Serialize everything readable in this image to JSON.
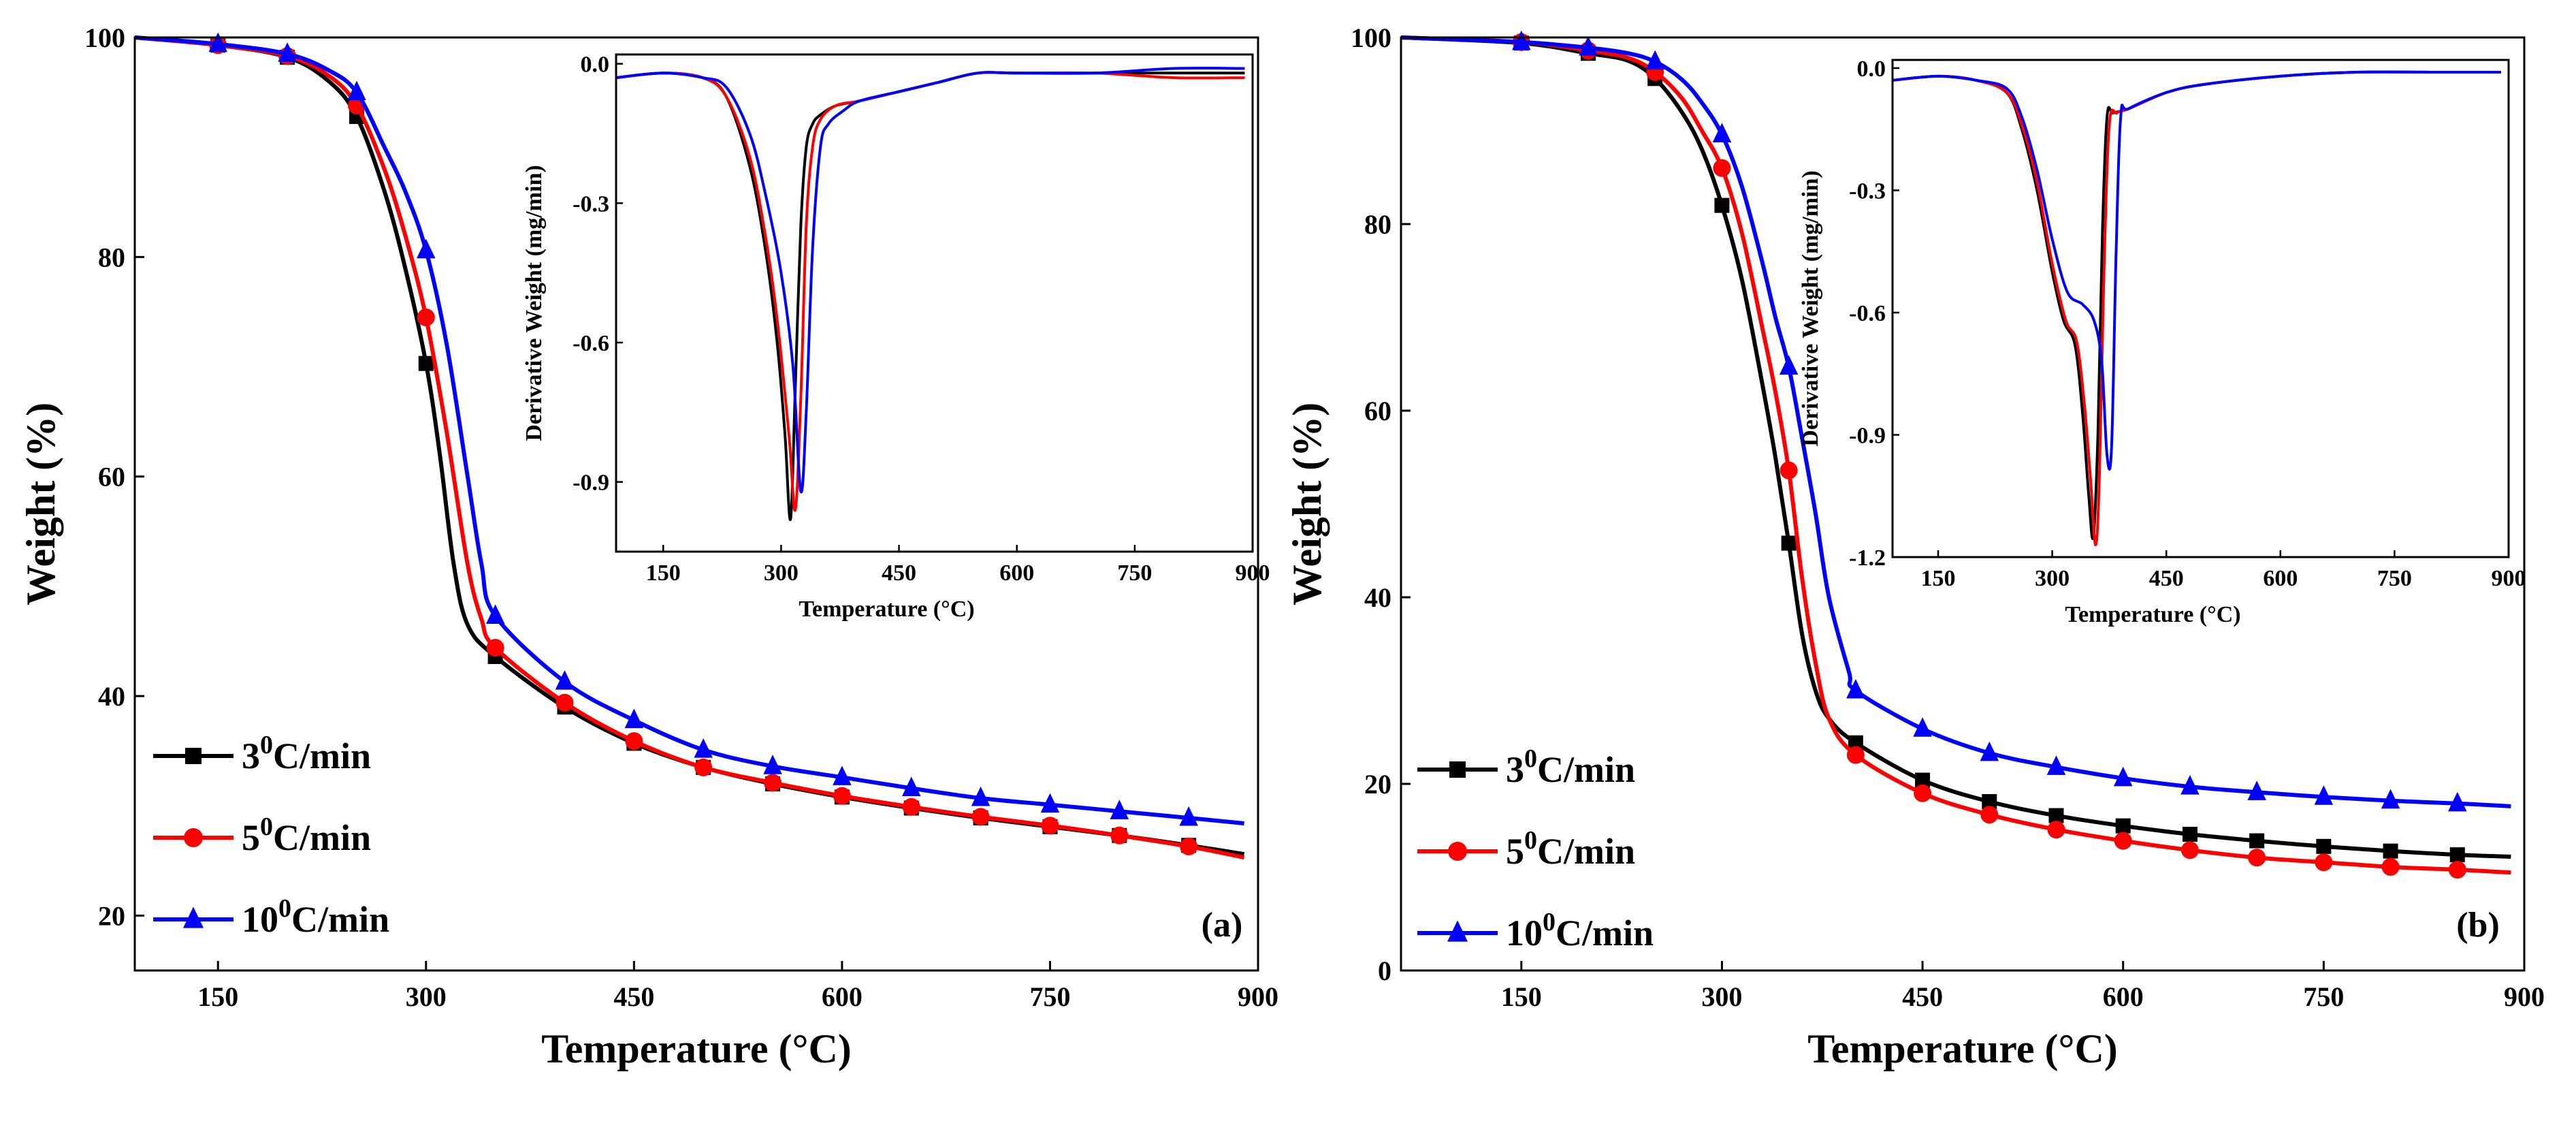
{
  "chart_data": [
    {
      "panel": "(a)",
      "type": "line",
      "xlabel": "Temperature (°C)",
      "ylabel": "Weight (%)",
      "xlim": [
        90,
        900
      ],
      "ylim": [
        15,
        100
      ],
      "xticks": [
        150,
        300,
        450,
        600,
        750,
        900
      ],
      "yticks": [
        20,
        40,
        60,
        80,
        100
      ],
      "legend_position": "bottom-left",
      "series": [
        {
          "name": "3°C/min",
          "label_num": "3",
          "label_sup": "0",
          "label_rest": "C/min",
          "color": "#000000",
          "marker": "square",
          "x": [
            90,
            150,
            200,
            230,
            250,
            270,
            285,
            300,
            310,
            320,
            330,
            350,
            400,
            450,
            500,
            550,
            600,
            650,
            700,
            750,
            800,
            850,
            890
          ],
          "y": [
            100,
            99.3,
            98.2,
            96,
            92.8,
            86,
            79,
            70.3,
            62,
            52,
            46.5,
            43.6,
            39,
            35.7,
            33.5,
            32,
            30.8,
            29.8,
            28.9,
            28.1,
            27.3,
            26.4,
            25.6
          ]
        },
        {
          "name": "5°C/min",
          "label_num": "5",
          "label_sup": "0",
          "label_rest": "C/min",
          "color": "#ff0000",
          "marker": "circle",
          "x": [
            90,
            150,
            200,
            230,
            250,
            270,
            285,
            300,
            315,
            330,
            340,
            350,
            400,
            450,
            500,
            550,
            600,
            650,
            700,
            750,
            800,
            850,
            890
          ],
          "y": [
            100,
            99.3,
            98.3,
            96.5,
            93.8,
            88,
            82,
            74.5,
            64,
            52,
            47,
            44.4,
            39.4,
            35.9,
            33.5,
            32.1,
            30.9,
            29.9,
            29,
            28.2,
            27.3,
            26.3,
            25.3
          ]
        },
        {
          "name": "10°C/min",
          "label_num": "10",
          "label_sup": "0",
          "label_rest": "C/min",
          "color": "#0000ff",
          "marker": "triangle",
          "x": [
            90,
            150,
            200,
            230,
            250,
            270,
            285,
            300,
            315,
            330,
            340,
            350,
            400,
            450,
            500,
            550,
            600,
            650,
            700,
            750,
            800,
            850,
            890
          ],
          "y": [
            100,
            99.4,
            98.5,
            97,
            95,
            90,
            86,
            80.6,
            72,
            60,
            52,
            47.3,
            41.3,
            37.8,
            35.1,
            33.6,
            32.6,
            31.6,
            30.7,
            30.1,
            29.5,
            28.9,
            28.4
          ]
        }
      ],
      "marker_x": [
        150,
        200,
        250,
        300,
        350,
        400,
        450,
        500,
        550,
        600,
        650,
        700,
        750,
        800,
        850
      ],
      "inset": {
        "type": "line",
        "xlabel": "Temperature (°C)",
        "ylabel": "Derivative Weight (mg/min)",
        "xlim": [
          90,
          900
        ],
        "ylim": [
          -1.05,
          0.02
        ],
        "xticks": [
          150,
          300,
          450,
          600,
          750,
          900
        ],
        "yticks": [
          0.0,
          -0.3,
          -0.6,
          -0.9
        ],
        "ytick_labels": [
          "0.0",
          "-0.3",
          "-0.6",
          "-0.9"
        ],
        "series": [
          {
            "name": "3°C/min",
            "color": "#000000",
            "x": [
              90,
              150,
              200,
              230,
              260,
              280,
              295,
              305,
              312,
              318,
              325,
              332,
              340,
              350,
              370,
              400,
              450,
              500,
              550,
              600,
              700,
              800,
              890
            ],
            "y": [
              -0.03,
              -0.02,
              -0.03,
              -0.07,
              -0.22,
              -0.4,
              -0.6,
              -0.8,
              -0.98,
              -0.7,
              -0.35,
              -0.18,
              -0.13,
              -0.11,
              -0.09,
              -0.08,
              -0.06,
              -0.04,
              -0.02,
              -0.02,
              -0.02,
              -0.02,
              -0.02
            ]
          },
          {
            "name": "5°C/min",
            "color": "#ff0000",
            "x": [
              90,
              150,
              200,
              230,
              260,
              280,
              295,
              310,
              318,
              325,
              332,
              340,
              350,
              370,
              400,
              450,
              500,
              550,
              600,
              700,
              800,
              890
            ],
            "y": [
              -0.03,
              -0.02,
              -0.03,
              -0.07,
              -0.2,
              -0.37,
              -0.55,
              -0.8,
              -0.96,
              -0.72,
              -0.35,
              -0.18,
              -0.12,
              -0.09,
              -0.08,
              -0.06,
              -0.04,
              -0.02,
              -0.02,
              -0.02,
              -0.03,
              -0.03
            ]
          },
          {
            "name": "10°C/min",
            "color": "#0000ff",
            "x": [
              90,
              150,
              200,
              230,
              260,
              280,
              300,
              315,
              325,
              332,
              340,
              350,
              360,
              380,
              400,
              450,
              500,
              550,
              600,
              700,
              800,
              890
            ],
            "y": [
              -0.03,
              -0.02,
              -0.03,
              -0.05,
              -0.15,
              -0.28,
              -0.45,
              -0.65,
              -0.92,
              -0.75,
              -0.4,
              -0.18,
              -0.13,
              -0.1,
              -0.08,
              -0.06,
              -0.04,
              -0.02,
              -0.02,
              -0.02,
              -0.01,
              -0.01
            ]
          }
        ]
      }
    },
    {
      "panel": "(b)",
      "type": "line",
      "xlabel": "Temperature (°C)",
      "ylabel": "Weight (%)",
      "xlim": [
        60,
        900
      ],
      "ylim": [
        0,
        100
      ],
      "xticks": [
        150,
        300,
        450,
        600,
        750,
        900
      ],
      "yticks": [
        0,
        20,
        40,
        60,
        80,
        100
      ],
      "legend_position": "bottom-left",
      "series": [
        {
          "name": "3°C/min",
          "label_num": "3",
          "label_sup": "0",
          "label_rest": "C/min",
          "color": "#000000",
          "marker": "square",
          "x": [
            60,
            150,
            200,
            230,
            250,
            270,
            285,
            300,
            315,
            330,
            340,
            350,
            360,
            370,
            380,
            400,
            450,
            500,
            550,
            600,
            650,
            700,
            750,
            800,
            850,
            890
          ],
          "y": [
            100,
            99.4,
            98.3,
            97.5,
            95.6,
            92,
            88,
            82,
            74,
            63,
            55,
            45.8,
            36,
            30,
            27,
            24.4,
            20.4,
            18.1,
            16.6,
            15.5,
            14.6,
            13.9,
            13.3,
            12.8,
            12.4,
            12.2
          ]
        },
        {
          "name": "5°C/min",
          "label_num": "5",
          "label_sup": "0",
          "label_rest": "C/min",
          "color": "#ff0000",
          "marker": "circle",
          "x": [
            60,
            150,
            200,
            230,
            250,
            270,
            285,
            300,
            315,
            330,
            340,
            350,
            360,
            370,
            380,
            400,
            450,
            500,
            550,
            600,
            650,
            700,
            750,
            800,
            850,
            890
          ],
          "y": [
            100,
            99.5,
            98.6,
            97.8,
            96.3,
            93.5,
            90,
            86,
            79,
            69,
            62,
            53.6,
            42,
            33,
            27,
            23.1,
            19,
            16.7,
            15.1,
            13.9,
            12.9,
            12.1,
            11.6,
            11.1,
            10.8,
            10.5
          ]
        },
        {
          "name": "10°C/min",
          "label_num": "10",
          "label_sup": "0",
          "label_rest": "C/min",
          "color": "#0000ff",
          "marker": "triangle",
          "x": [
            60,
            150,
            200,
            230,
            250,
            270,
            285,
            300,
            315,
            330,
            340,
            350,
            360,
            370,
            380,
            395,
            400,
            450,
            500,
            550,
            600,
            650,
            700,
            750,
            800,
            850,
            890
          ],
          "y": [
            100,
            99.5,
            98.9,
            98.3,
            97.4,
            95.5,
            93,
            89.6,
            84,
            76,
            70,
            64.7,
            57,
            49,
            40,
            32,
            30,
            25.9,
            23.3,
            21.8,
            20.6,
            19.7,
            19.1,
            18.6,
            18.2,
            17.9,
            17.6
          ]
        }
      ],
      "marker_x": [
        150,
        200,
        250,
        300,
        350,
        400,
        450,
        500,
        550,
        600,
        650,
        700,
        750,
        800,
        850
      ],
      "inset": {
        "type": "line",
        "xlabel": "Temperature (°C)",
        "ylabel": "Derivative Weight (mg/min)",
        "xlim": [
          90,
          900
        ],
        "ylim": [
          -1.2,
          0.02
        ],
        "xticks": [
          150,
          300,
          450,
          600,
          750,
          900
        ],
        "yticks": [
          0.0,
          -0.3,
          -0.6,
          -0.9,
          -1.2
        ],
        "ytick_labels": [
          "0.0",
          "-0.3",
          "-0.6",
          "-0.9",
          "-1.2"
        ],
        "series": [
          {
            "name": "3°C/min",
            "color": "#000000",
            "x": [
              90,
              150,
              200,
              240,
              260,
              280,
              300,
              315,
              330,
              340,
              348,
              354,
              360,
              366,
              372,
              380,
              400,
              450,
              500,
              600,
              700,
              800,
              890
            ],
            "y": [
              -0.03,
              -0.02,
              -0.03,
              -0.06,
              -0.15,
              -0.3,
              -0.5,
              -0.62,
              -0.68,
              -0.85,
              -1.05,
              -1.15,
              -0.9,
              -0.4,
              -0.12,
              -0.11,
              -0.1,
              -0.06,
              -0.04,
              -0.02,
              -0.01,
              -0.01,
              -0.01
            ]
          },
          {
            "name": "5°C/min",
            "color": "#ff0000",
            "x": [
              90,
              150,
              200,
              240,
              260,
              280,
              300,
              318,
              332,
              342,
              350,
              357,
              362,
              368,
              375,
              385,
              400,
              450,
              500,
              600,
              700,
              800,
              890
            ],
            "y": [
              -0.03,
              -0.02,
              -0.03,
              -0.06,
              -0.14,
              -0.28,
              -0.48,
              -0.62,
              -0.67,
              -0.82,
              -1.0,
              -1.17,
              -1.0,
              -0.5,
              -0.14,
              -0.11,
              -0.1,
              -0.06,
              -0.04,
              -0.02,
              -0.01,
              -0.01,
              -0.01
            ]
          },
          {
            "name": "10°C/min",
            "color": "#0000ff",
            "x": [
              90,
              150,
              200,
              240,
              260,
              280,
              300,
              320,
              340,
              355,
              365,
              372,
              378,
              384,
              390,
              400,
              450,
              500,
              600,
              700,
              800,
              890
            ],
            "y": [
              -0.03,
              -0.02,
              -0.03,
              -0.05,
              -0.12,
              -0.25,
              -0.42,
              -0.55,
              -0.58,
              -0.62,
              -0.72,
              -0.95,
              -0.93,
              -0.45,
              -0.12,
              -0.1,
              -0.06,
              -0.04,
              -0.02,
              -0.01,
              -0.01,
              -0.01
            ]
          }
        ]
      }
    }
  ]
}
